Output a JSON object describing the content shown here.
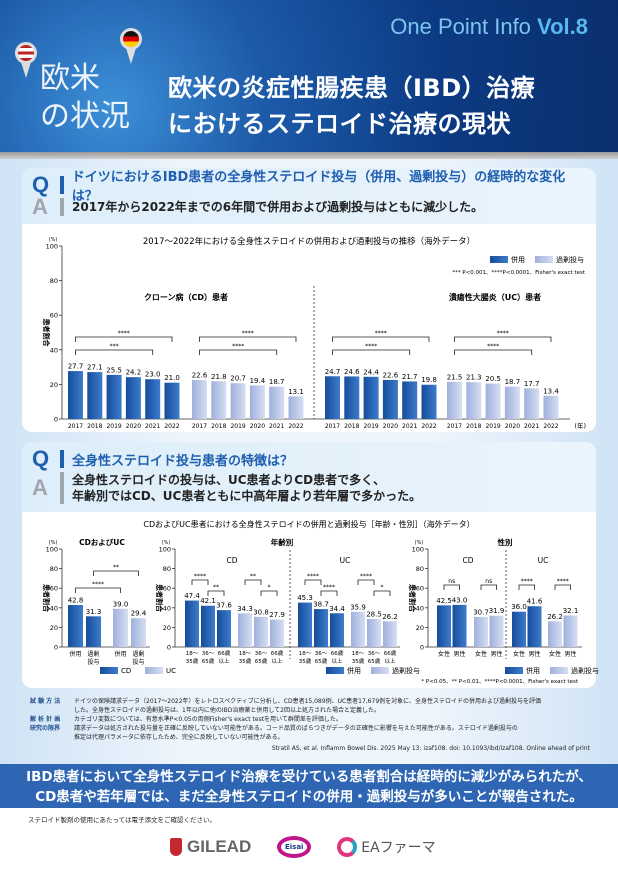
{
  "header": {
    "series": "One Point Info",
    "vol": "Vol.8",
    "side_line1": "欧米",
    "side_line2": "の状況",
    "title_line1": "欧米の炎症性腸疾患（IBD）治療",
    "title_line2": "におけるステロイド治療の現状",
    "pins": [
      "us-flag-pin-icon",
      "germany-flag-pin-icon"
    ]
  },
  "section1": {
    "q_letter": "Q",
    "a_letter": "A",
    "question": "ドイツにおけるIBD患者の全身性ステロイド投与（併用、過剰投与）の経時的な変化は？",
    "answer": "2017年から2022年までの6年間で併用および過剰投与はともに減少した。"
  },
  "section2": {
    "q_letter": "Q",
    "a_letter": "A",
    "question": "全身性ステロイド投与患者の特徴は？",
    "answer_line1": "全身性ステロイドの投与は、UC患者よりCD患者で多く、",
    "answer_line2": "年齢別ではCD、UC患者ともに中高年層より若年層で多かった。"
  },
  "colors": {
    "header": "#0c3a82",
    "accent": "#1f5fb0",
    "combo": "#1f56a6",
    "excess": "#b4c2e6",
    "banner": "#2e66b4"
  },
  "chart_data": [
    {
      "type": "bar",
      "title": "2017〜2022年における全身性ステロイドの併用および過剰投与の推移（海外データ）",
      "yunit": "(%)",
      "ylabel": "患者割合",
      "ylim": [
        0,
        100
      ],
      "yticks": [
        "0",
        "20",
        "40",
        "60",
        "80",
        "100"
      ],
      "xunit": "(年)",
      "legend": [
        "併用",
        "過剰投与"
      ],
      "note": "*** P<0.001、****P<0.0001、Fisher's exact test",
      "panels": [
        {
          "title": "クローン病（CD）患者",
          "groups": [
            {
              "series": "併用",
              "categories": [
                "2017",
                "2018",
                "2019",
                "2020",
                "2021",
                "2022"
              ],
              "values": [
                27.7,
                27.1,
                25.5,
                24.2,
                23.0,
                21.0
              ],
              "labels": [
                "27.7",
                "27.1",
                "25.5",
                "24.2",
                "23.0",
                "21.0"
              ],
              "brackets": [
                {
                  "from": 0,
                  "to": 5,
                  "label": "****"
                },
                {
                  "from": 0,
                  "to": 4,
                  "label": "***"
                }
              ]
            },
            {
              "series": "過剰投与",
              "categories": [
                "2017",
                "2018",
                "2019",
                "2020",
                "2021",
                "2022"
              ],
              "values": [
                22.6,
                21.8,
                20.7,
                19.4,
                18.7,
                13.1
              ],
              "labels": [
                "22.6",
                "21.8",
                "20.7",
                "19.4",
                "18.7",
                "13.1"
              ],
              "brackets": [
                {
                  "from": 0,
                  "to": 5,
                  "label": "****"
                },
                {
                  "from": 0,
                  "to": 4,
                  "label": "****"
                }
              ]
            }
          ]
        },
        {
          "title": "潰瘍性大腸炎（UC）患者",
          "groups": [
            {
              "series": "併用",
              "categories": [
                "2017",
                "2018",
                "2019",
                "2020",
                "2021",
                "2022"
              ],
              "values": [
                24.7,
                24.6,
                24.4,
                22.6,
                21.7,
                19.8
              ],
              "labels": [
                "24.7",
                "24.6",
                "24.4",
                "22.6",
                "21.7",
                "19.8"
              ],
              "brackets": [
                {
                  "from": 0,
                  "to": 5,
                  "label": "****"
                },
                {
                  "from": 0,
                  "to": 4,
                  "label": "****"
                }
              ]
            },
            {
              "series": "過剰投与",
              "categories": [
                "2017",
                "2018",
                "2019",
                "2020",
                "2021",
                "2022"
              ],
              "values": [
                21.5,
                21.3,
                20.5,
                18.7,
                17.7,
                13.4
              ],
              "labels": [
                "21.5",
                "21.3",
                "20.5",
                "18.7",
                "17.7",
                "13.4"
              ],
              "brackets": [
                {
                  "from": 0,
                  "to": 5,
                  "label": "****"
                },
                {
                  "from": 0,
                  "to": 4,
                  "label": "****"
                }
              ]
            }
          ]
        }
      ]
    },
    {
      "type": "bar",
      "title": "CDおよびUC患者における全身性ステロイドの併用と過剰投与［年齢・性別］（海外データ）",
      "yunit": "(%)",
      "ylabel": "患者割合",
      "ylim": [
        0,
        100
      ],
      "yticks": [
        "0",
        "20",
        "40",
        "60",
        "80",
        "100"
      ],
      "note": "* P<0.05、** P<0.01、****P<0.0001、Fisher's exact test",
      "overall": {
        "title": "CDおよびUC",
        "legend": [
          "CD",
          "UC"
        ],
        "categories": [
          "併用",
          "過剰投与",
          "併用",
          "過剰投与"
        ],
        "series": [
          "CD",
          "CD",
          "UC",
          "UC"
        ],
        "values": [
          42.8,
          31.3,
          39.0,
          29.4
        ],
        "labels": [
          "42.8",
          "31.3",
          "39.0",
          "29.4"
        ],
        "brackets": [
          {
            "from": 0,
            "to": 2,
            "label": "****"
          },
          {
            "from": 1,
            "to": 3,
            "label": "**"
          }
        ]
      },
      "age": {
        "title": "年齢別",
        "legend": [
          "併用",
          "過剰投与"
        ],
        "panels": [
          {
            "title": "CD",
            "groups": [
              {
                "series": "併用",
                "categories": [
                  "18〜|35歳",
                  "36〜|65歳",
                  "66歳|以上"
                ],
                "values": [
                  47.4,
                  42.1,
                  37.6
                ],
                "labels": [
                  "47.4",
                  "42.1",
                  "37.6"
                ],
                "brackets": [
                  {
                    "from": 0,
                    "to": 1,
                    "label": "****"
                  },
                  {
                    "from": 1,
                    "to": 2,
                    "label": "**"
                  }
                ]
              },
              {
                "series": "過剰投与",
                "categories": [
                  "18〜|35歳",
                  "36〜|65歳",
                  "66歳|以上"
                ],
                "values": [
                  34.3,
                  30.8,
                  27.9
                ],
                "labels": [
                  "34.3",
                  "30.8",
                  "27.9"
                ],
                "brackets": [
                  {
                    "from": 0,
                    "to": 1,
                    "label": "**"
                  },
                  {
                    "from": 1,
                    "to": 2,
                    "label": "*"
                  }
                ]
              }
            ]
          },
          {
            "title": "UC",
            "groups": [
              {
                "series": "併用",
                "categories": [
                  "18〜|35歳",
                  "36〜|65歳",
                  "66歳|以上"
                ],
                "values": [
                  45.3,
                  38.7,
                  34.4
                ],
                "labels": [
                  "45.3",
                  "38.7",
                  "34.4"
                ],
                "brackets": [
                  {
                    "from": 0,
                    "to": 1,
                    "label": "****"
                  },
                  {
                    "from": 1,
                    "to": 2,
                    "label": "****"
                  }
                ]
              },
              {
                "series": "過剰投与",
                "categories": [
                  "18〜|35歳",
                  "36〜|65歳",
                  "66歳|以上"
                ],
                "values": [
                  35.9,
                  28.5,
                  26.2
                ],
                "labels": [
                  "35.9",
                  "28.5",
                  "26.2"
                ],
                "brackets": [
                  {
                    "from": 0,
                    "to": 1,
                    "label": "****"
                  },
                  {
                    "from": 1,
                    "to": 2,
                    "label": "*"
                  }
                ]
              }
            ]
          }
        ]
      },
      "sex": {
        "title": "性別",
        "legend": [
          "併用",
          "過剰投与"
        ],
        "panels": [
          {
            "title": "CD",
            "groups": [
              {
                "series": "併用",
                "categories": [
                  "女性",
                  "男性"
                ],
                "values": [
                  42.5,
                  43.0
                ],
                "labels": [
                  "42.5",
                  "43.0"
                ],
                "brackets": [
                  {
                    "from": 0,
                    "to": 1,
                    "label": "ns"
                  }
                ]
              },
              {
                "series": "過剰投与",
                "categories": [
                  "女性",
                  "男性"
                ],
                "values": [
                  30.7,
                  31.9
                ],
                "labels": [
                  "30.7",
                  "31.9"
                ],
                "brackets": [
                  {
                    "from": 0,
                    "to": 1,
                    "label": "ns"
                  }
                ]
              }
            ]
          },
          {
            "title": "UC",
            "groups": [
              {
                "series": "併用",
                "categories": [
                  "女性",
                  "男性"
                ],
                "values": [
                  36.0,
                  41.6
                ],
                "labels": [
                  "36.0",
                  "41.6"
                ],
                "brackets": [
                  {
                    "from": 0,
                    "to": 1,
                    "label": "****"
                  }
                ]
              },
              {
                "series": "過剰投与",
                "categories": [
                  "女性",
                  "男性"
                ],
                "values": [
                  26.2,
                  32.1
                ],
                "labels": [
                  "26.2",
                  "32.1"
                ],
                "brackets": [
                  {
                    "from": 0,
                    "to": 1,
                    "label": "****"
                  }
                ]
              }
            ]
          }
        ]
      }
    }
  ],
  "methods": {
    "method_label": "試 験 方 法",
    "method_line1": "ドイツの保険請求データ（2017～2022年）をレトロスペクティブに分析し、CD患者15,089例、UC患者17,679例を対象に、全身性ステロイドの併用および過剰投与を評価",
    "method_line2": "した。全身性ステロイドの過剰投与は、1年以内に他のIBD治療薬と併用して2回以上処方された場合と定義した。",
    "analysis_label": "解 析 計 画",
    "analysis_text": "カテゴリ変数については、有意水準P<0.05の両側Fisher's exact testを用いて群間差を評価した。",
    "limit_label": "研究の限界",
    "limit_line1": "請求データは処方された投与量を正確に反映していない可能性がある。コード品質のばらつきがデータの正確性に影響を与えた可能性がある。ステロイド過剰投与の",
    "limit_line2": "推定は代理パラメータに依存したため、完全に反映していない可能性がある。",
    "citation": "Stratil AS, et al. Inflamm Bowel Dis. 2025 May 13: izaf108. doi: 10.1093/ibd/izaf108. Online ahead of print"
  },
  "banner": {
    "line1": "IBD患者において全身性ステロイド治療を受けている患者割合は経時的に減少がみられたが、",
    "line2": "CD患者や若年層では、まだ全身性ステロイドの併用・過剰投与が多いことが報告された。"
  },
  "footer": {
    "note": "ステロイド製剤の使用にあたっては電子添文をご確認ください。",
    "logos": [
      "GILEAD",
      "Eisai",
      "EAファーマ"
    ]
  }
}
